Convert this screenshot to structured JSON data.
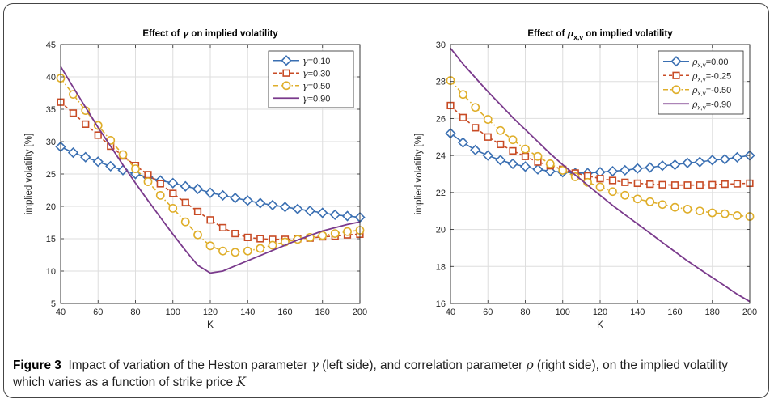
{
  "colors": {
    "blue": "#3a6fb2",
    "red": "#c84b25",
    "gold": "#dfae2a",
    "purple": "#7a3a8c",
    "axis": "#262626",
    "grid": "#dedede"
  },
  "caption": {
    "label": "Figure 3",
    "text_a": "Impact of variation of the Heston parameter",
    "gamma_sym": "γ",
    "text_b": "(left side), and correlation parameter",
    "rho_sym": "ρ",
    "text_c": "(right side), on the implied volatility which varies as a function of strike price",
    "k_sym": "K"
  },
  "chart_data": [
    {
      "type": "line",
      "title_prefix": "Effect of",
      "title_symbol": "γ",
      "title_suffix": "on implied volatility",
      "xlabel": "K",
      "ylabel": "implied volatility [%]",
      "xlim": [
        40,
        200
      ],
      "ylim": [
        5,
        45
      ],
      "xticks": [
        40,
        60,
        80,
        100,
        120,
        140,
        160,
        180,
        200
      ],
      "yticks": [
        5,
        10,
        15,
        20,
        25,
        30,
        35,
        40,
        45
      ],
      "grid": true,
      "legend_position": "top-right",
      "x": [
        40,
        46.7,
        53.3,
        60,
        66.7,
        73.3,
        80,
        86.7,
        93.3,
        100,
        106.7,
        113.3,
        120,
        126.7,
        133.3,
        140,
        146.7,
        153.3,
        160,
        166.7,
        173.3,
        180,
        186.7,
        193.3,
        200
      ],
      "series": [
        {
          "name": "γ=0.10",
          "color": "blue",
          "marker": "diamond",
          "style": "solid",
          "values": [
            29.2,
            28.3,
            27.6,
            26.9,
            26.2,
            25.6,
            25.0,
            24.5,
            24.0,
            23.6,
            23.1,
            22.7,
            22.1,
            21.7,
            21.3,
            20.9,
            20.5,
            20.2,
            19.9,
            19.6,
            19.3,
            19.0,
            18.7,
            18.5,
            18.3
          ]
        },
        {
          "name": "γ=0.30",
          "color": "red",
          "marker": "square",
          "style": "dashed",
          "values": [
            36.1,
            34.4,
            32.7,
            31.0,
            29.3,
            27.8,
            26.3,
            24.9,
            23.5,
            22.0,
            20.6,
            19.2,
            17.9,
            16.7,
            15.8,
            15.2,
            15.0,
            14.9,
            14.9,
            15.0,
            15.1,
            15.3,
            15.4,
            15.6,
            15.7
          ]
        },
        {
          "name": "γ=0.50",
          "color": "gold",
          "marker": "circle",
          "style": "dashdot",
          "values": [
            39.8,
            37.3,
            34.8,
            32.5,
            30.2,
            28.0,
            25.8,
            23.8,
            21.7,
            19.7,
            17.6,
            15.6,
            13.9,
            13.1,
            12.9,
            13.1,
            13.5,
            14.0,
            14.5,
            14.9,
            15.2,
            15.5,
            15.8,
            16.1,
            16.3
          ]
        },
        {
          "name": "γ=0.90",
          "color": "purple",
          "marker": "none",
          "style": "solid",
          "values": [
            41.6,
            38.4,
            35.3,
            32.2,
            29.3,
            26.4,
            23.6,
            20.9,
            18.3,
            15.7,
            13.2,
            10.9,
            9.7,
            10.0,
            10.8,
            11.6,
            12.4,
            13.2,
            14.0,
            14.8,
            15.5,
            16.2,
            16.7,
            17.2,
            17.6
          ]
        }
      ]
    },
    {
      "type": "line",
      "title_prefix": "Effect of",
      "title_symbol": "ρ",
      "title_sub": "x,v",
      "title_suffix": "on implied volatility",
      "xlabel": "K",
      "ylabel": "implied volatility [%]",
      "xlim": [
        40,
        200
      ],
      "ylim": [
        16,
        30
      ],
      "xticks": [
        40,
        60,
        80,
        100,
        120,
        140,
        160,
        180,
        200
      ],
      "yticks": [
        16,
        18,
        20,
        22,
        24,
        26,
        28,
        30
      ],
      "grid": true,
      "legend_position": "top-right",
      "x": [
        40,
        46.7,
        53.3,
        60,
        66.7,
        73.3,
        80,
        86.7,
        93.3,
        100,
        106.7,
        113.3,
        120,
        126.7,
        133.3,
        140,
        146.7,
        153.3,
        160,
        166.7,
        173.3,
        180,
        186.7,
        193.3,
        200
      ],
      "series": [
        {
          "name": "=0.00",
          "color": "blue",
          "marker": "diamond",
          "style": "solid",
          "values": [
            25.2,
            24.7,
            24.3,
            24.0,
            23.75,
            23.55,
            23.4,
            23.25,
            23.15,
            23.1,
            23.05,
            23.05,
            23.1,
            23.15,
            23.2,
            23.3,
            23.35,
            23.45,
            23.5,
            23.6,
            23.65,
            23.75,
            23.8,
            23.9,
            24.0
          ]
        },
        {
          "name": "=-0.25",
          "color": "red",
          "marker": "square",
          "style": "dashed",
          "values": [
            26.7,
            26.05,
            25.5,
            25.0,
            24.6,
            24.25,
            23.95,
            23.65,
            23.45,
            23.25,
            23.05,
            22.9,
            22.75,
            22.65,
            22.55,
            22.5,
            22.45,
            22.42,
            22.4,
            22.4,
            22.4,
            22.42,
            22.45,
            22.47,
            22.5
          ]
        },
        {
          "name": "=-0.50",
          "color": "gold",
          "marker": "circle",
          "style": "dashdot",
          "values": [
            28.05,
            27.3,
            26.6,
            25.95,
            25.35,
            24.85,
            24.35,
            23.95,
            23.55,
            23.2,
            22.85,
            22.55,
            22.3,
            22.05,
            21.85,
            21.65,
            21.5,
            21.35,
            21.2,
            21.1,
            21.0,
            20.9,
            20.85,
            20.75,
            20.7
          ]
        },
        {
          "name": "=-0.90",
          "color": "purple",
          "marker": "none",
          "style": "solid",
          "values": [
            29.8,
            28.95,
            28.2,
            27.45,
            26.75,
            26.05,
            25.4,
            24.75,
            24.1,
            23.5,
            22.95,
            22.4,
            21.85,
            21.3,
            20.8,
            20.3,
            19.8,
            19.3,
            18.8,
            18.3,
            17.85,
            17.4,
            16.95,
            16.5,
            16.1
          ]
        }
      ]
    }
  ]
}
